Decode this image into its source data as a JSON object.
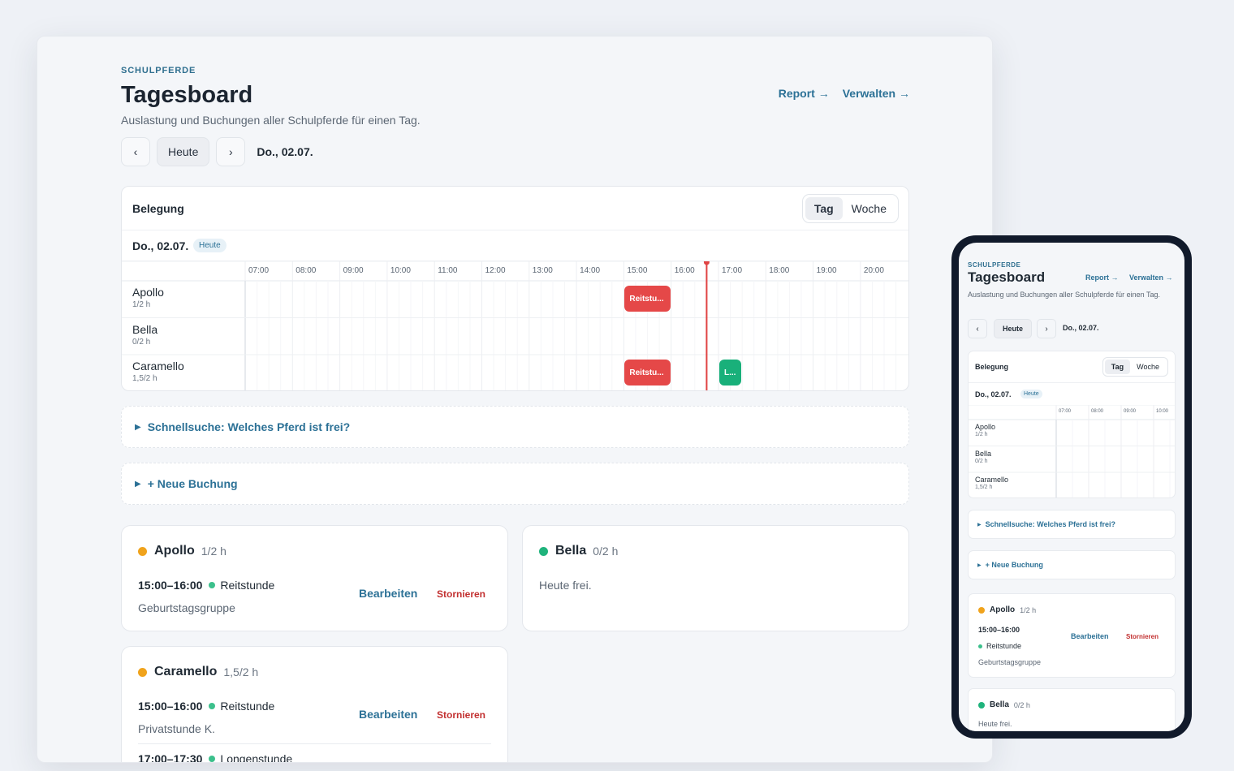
{
  "header": {
    "eyebrow": "SCHULPFERDE",
    "title": "Tagesboard",
    "subtitle": "Auslastung und Buchungen aller Schulpferde für einen Tag.",
    "link_report": "Report →",
    "link_manage": "Verwalten →"
  },
  "datenav": {
    "prev_icon": "chevron-left-icon",
    "prev": "‹",
    "today": "Heute",
    "next_icon": "chevron-right-icon",
    "next": "›",
    "current_date": "Do., 02.07."
  },
  "board": {
    "title": "Belegung",
    "view_day": "Tag",
    "view_week": "Woche",
    "day_label": "Do., 02.07.",
    "today_badge": "Heute",
    "hours": [
      "07:00",
      "08:00",
      "09:00",
      "10:00",
      "11:00",
      "12:00",
      "13:00",
      "14:00",
      "15:00",
      "16:00",
      "17:00",
      "18:00",
      "19:00",
      "20:00"
    ],
    "now_hour": 16.75,
    "horses": [
      {
        "name": "Apollo",
        "hours": "1/2 h",
        "bookings": [
          {
            "label": "Reitstu...",
            "start": 15,
            "end": 16,
            "color": "#e54848"
          }
        ]
      },
      {
        "name": "Bella",
        "hours": "0/2 h",
        "bookings": []
      },
      {
        "name": "Caramello",
        "hours": "1,5/2 h",
        "bookings": [
          {
            "label": "Reitstu...",
            "start": 15,
            "end": 16,
            "color": "#e54848"
          },
          {
            "label": "L...",
            "start": 17,
            "end": 17.5,
            "color": "#19b07a"
          }
        ]
      }
    ]
  },
  "quicksearch": {
    "label": "Schnellsuche: Welches Pferd ist frei?"
  },
  "newbooking": {
    "label": "+ Neue Buchung"
  },
  "cards": {
    "apollo": {
      "name": "Apollo",
      "hours": "1/2 h",
      "slot_time": "15:00–16:00",
      "slot_type": "Reitstunde",
      "note": "Geburtstagsgruppe",
      "edit": "Bearbeiten",
      "cancel": "Stornieren"
    },
    "bella": {
      "name": "Bella",
      "hours": "0/2 h",
      "free": "Heute frei."
    },
    "caramello": {
      "name": "Caramello",
      "hours": "1,5/2 h",
      "slot1_time": "15:00–16:00",
      "slot1_type": "Reitstunde",
      "note1": "Privatstunde K.",
      "slot2_time": "17:00–17:30",
      "slot2_type": "Longenstunde",
      "edit": "Bearbeiten",
      "cancel": "Stornieren"
    }
  },
  "mobile": {
    "hours": [
      "07:00",
      "08:00",
      "09:00",
      "10:00"
    ],
    "report": "Report →",
    "manage": "Verwalten →"
  },
  "colors": {
    "accent": "#2c7196",
    "booking_red": "#e54848",
    "booking_green": "#19b07a",
    "now_line": "#e04343"
  }
}
